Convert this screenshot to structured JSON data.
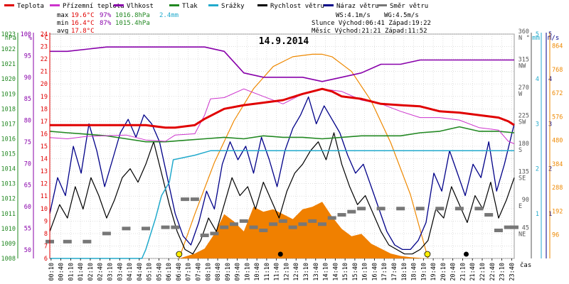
{
  "chart_data": {
    "type": "line",
    "title": "14.9.2014",
    "legend": [
      {
        "label": "Teplota",
        "color": "#e00000"
      },
      {
        "label": "Přízemní teplota",
        "color": "#cc33cc"
      },
      {
        "label": "Vlhkost",
        "color": "#8800aa"
      },
      {
        "label": "Tlak",
        "color": "#228822"
      },
      {
        "label": "Srážky",
        "color": "#22aacc"
      },
      {
        "label": "Rychlost větru",
        "color": "#000000"
      },
      {
        "label": "Náraz větru",
        "color": "#000088"
      },
      {
        "label": "Směr větru",
        "color": "#777777"
      }
    ],
    "stats": {
      "max_label": "max",
      "max_temp": "19.6°C",
      "max_hum": "97%",
      "max_press": "1016.8hPa",
      "max_rain": "2.4mm",
      "min_label": "min",
      "min_temp": "16.4°C",
      "min_hum": "87%",
      "min_press": "1015.4hPa",
      "avg_label": "avg",
      "avg_temp": "17.8°C",
      "ws": "WS:4.1m/s",
      "wg": "WG:4.5m/s",
      "sun": "Slunce Východ:06:41  Západ:19:22",
      "moon": "Měsíc  Východ:21:21  Západ:11:52"
    },
    "axes": {
      "pressure": {
        "unit": "hPa",
        "ticks": [
          "1023",
          "1022",
          "1021",
          "1020",
          "1019",
          "1018",
          "1017",
          "1016",
          "1015",
          "1014",
          "1013",
          "1012",
          "1011",
          "1010",
          "1009",
          "1008"
        ],
        "range": [
          1008,
          1023
        ],
        "color": "#228822"
      },
      "humidity": {
        "unit": "%",
        "ticks": [
          "100",
          "95",
          "90",
          "85",
          "80",
          "75",
          "70",
          "65",
          "60",
          "55",
          "50"
        ],
        "range": [
          48,
          100
        ],
        "color": "#8800aa"
      },
      "temperature": {
        "unit": "°C",
        "ticks": [
          "24",
          "23",
          "22",
          "21",
          "20",
          "19",
          "18",
          "17",
          "16",
          "15",
          "14",
          "13",
          "12",
          "11",
          "10",
          "9",
          "8",
          "7",
          "6"
        ],
        "range": [
          6,
          24
        ],
        "color": "#e00000"
      },
      "direction": {
        "unit": "°",
        "ticks": [
          {
            "deg": "360",
            "dir": "N"
          },
          {
            "deg": "315",
            "dir": "NW"
          },
          {
            "deg": "270",
            "dir": "W"
          },
          {
            "deg": "225",
            "dir": "SW"
          },
          {
            "deg": "180",
            "dir": "S"
          },
          {
            "deg": "135",
            "dir": "SE"
          },
          {
            "deg": "90",
            "dir": "E"
          },
          {
            "deg": "45",
            "dir": "NE"
          }
        ],
        "range": [
          0,
          360
        ],
        "color": "#555555"
      },
      "rain": {
        "unit": "mm",
        "ticks": [
          "5",
          "4",
          "3",
          "2",
          "1"
        ],
        "range": [
          0,
          5
        ],
        "color": "#22aacc"
      },
      "wind": {
        "unit": "m/s",
        "ticks": [
          "5",
          "4",
          "3",
          "2",
          "1"
        ],
        "range": [
          0,
          5
        ],
        "color": "#000088"
      },
      "solar": {
        "ticks": [
          "864",
          "768",
          "672",
          "576",
          "480",
          "384",
          "288",
          "192",
          "96"
        ],
        "range": [
          0,
          912
        ],
        "color": "#ee8800"
      },
      "time": {
        "label": "čas",
        "ticks": [
          "00:10",
          "00:40",
          "01:10",
          "01:40",
          "02:10",
          "02:40",
          "03:10",
          "03:40",
          "04:10",
          "04:40",
          "05:10",
          "05:40",
          "06:10",
          "06:40",
          "07:10",
          "07:40",
          "08:10",
          "08:40",
          "09:10",
          "09:40",
          "10:10",
          "10:40",
          "11:10",
          "11:40",
          "12:10",
          "12:40",
          "13:10",
          "13:40",
          "14:10",
          "14:40",
          "15:10",
          "15:40",
          "16:10",
          "16:40",
          "17:10",
          "17:40",
          "18:10",
          "18:40",
          "19:10",
          "19:40",
          "20:10",
          "20:40",
          "21:10",
          "21:40",
          "22:10",
          "22:40",
          "23:10",
          "23:40"
        ],
        "range_hours": [
          0.1,
          23.8
        ]
      }
    },
    "series": {
      "temperature": {
        "name": "Teplota",
        "x": [
          0.1,
          2,
          4,
          5,
          6,
          6.5,
          7.5,
          8,
          9,
          10,
          11,
          12,
          13,
          13.5,
          14,
          14.5,
          15,
          16,
          17,
          18,
          19,
          20,
          21,
          22,
          23,
          23.5,
          23.8
        ],
        "y": [
          16.7,
          16.7,
          16.7,
          16.7,
          16.5,
          16.5,
          16.7,
          17.2,
          18.0,
          18.3,
          18.5,
          18.7,
          19.2,
          19.4,
          19.6,
          19.4,
          19.0,
          18.8,
          18.4,
          18.3,
          18.2,
          17.8,
          17.7,
          17.5,
          17.3,
          17.0,
          16.7
        ]
      },
      "apparent_temperature": {
        "name": "Přízemní teplota",
        "x": [
          0.1,
          1,
          2,
          4,
          5,
          6,
          6.5,
          7.5,
          8,
          8.3,
          9,
          10,
          11,
          12,
          13,
          14,
          15,
          16,
          17,
          18,
          19,
          20,
          21,
          22,
          23,
          23.5,
          23.8
        ],
        "y": [
          15.7,
          15.6,
          15.8,
          15.9,
          15.5,
          15.4,
          15.9,
          16.0,
          17.5,
          18.8,
          18.9,
          19.6,
          19.0,
          18.4,
          19.2,
          19.6,
          19.4,
          18.7,
          18.4,
          17.8,
          17.3,
          17.3,
          17.1,
          16.5,
          16.3,
          15.4,
          15.2
        ]
      },
      "humidity": {
        "name": "Vlhkost",
        "x": [
          0.1,
          1,
          3,
          4,
          5,
          6,
          8,
          9,
          10,
          11,
          12,
          13,
          14,
          15,
          16,
          17,
          18,
          19,
          20,
          23.8
        ],
        "y": [
          96,
          96,
          97,
          97,
          97,
          97,
          97,
          96,
          91,
          90,
          90,
          90,
          89,
          90,
          91,
          93,
          93,
          94,
          94,
          94
        ]
      },
      "pressure": {
        "name": "Tlak",
        "x": [
          0.1,
          1,
          2,
          3,
          4,
          5,
          6,
          7,
          8,
          9,
          10,
          11,
          12,
          13,
          14,
          15,
          16,
          17,
          18,
          19,
          20,
          21,
          22,
          23,
          23.8
        ],
        "y": [
          1016.5,
          1016.4,
          1016.3,
          1016.2,
          1016.0,
          1015.8,
          1015.8,
          1015.9,
          1016.0,
          1016.1,
          1016.0,
          1016.2,
          1016.1,
          1016.1,
          1016.0,
          1016.1,
          1016.2,
          1016.2,
          1016.2,
          1016.4,
          1016.5,
          1016.8,
          1016.5,
          1016.5,
          1016.4
        ]
      },
      "rain": {
        "name": "Srážky",
        "x": [
          0.1,
          4.8,
          5.0,
          5.5,
          5.8,
          6.2,
          6.4,
          7.5,
          8.3,
          8.4,
          23.8
        ],
        "y": [
          0,
          0,
          0.2,
          0.9,
          1.4,
          1.7,
          2.2,
          2.3,
          2.4,
          2.4,
          2.4
        ]
      },
      "wind_speed": {
        "name": "Rychlost větru",
        "x": [
          0.1,
          0.6,
          1.0,
          1.4,
          1.8,
          2.2,
          2.6,
          3.0,
          3.4,
          3.8,
          4.2,
          4.6,
          5.0,
          5.4,
          5.8,
          6.2,
          6.6,
          7.0,
          7.4,
          7.8,
          8.2,
          8.6,
          9.0,
          9.4,
          9.8,
          10.2,
          10.6,
          11.0,
          11.4,
          11.8,
          12.2,
          12.6,
          13.0,
          13.4,
          13.8,
          14.2,
          14.6,
          15.0,
          15.4,
          15.8,
          16.2,
          16.6,
          17.0,
          17.4,
          17.8,
          18.2,
          18.6,
          19.0,
          19.4,
          19.8,
          20.2,
          20.6,
          21.0,
          21.4,
          21.8,
          22.2,
          22.6,
          23.0,
          23.4,
          23.8
        ],
        "y": [
          0.6,
          1.2,
          0.9,
          1.6,
          1.1,
          1.8,
          1.4,
          0.9,
          1.3,
          1.8,
          2.0,
          1.7,
          2.1,
          2.6,
          1.9,
          1.2,
          0.6,
          0.2,
          0.1,
          0.4,
          0.9,
          0.6,
          1.2,
          1.8,
          1.4,
          1.6,
          1.1,
          1.7,
          1.3,
          0.9,
          1.5,
          1.9,
          2.1,
          2.4,
          2.6,
          2.2,
          2.8,
          2.1,
          1.6,
          1.2,
          1.4,
          1.0,
          0.6,
          0.3,
          0.2,
          0.1,
          0.1,
          0.2,
          0.4,
          1.1,
          0.9,
          1.6,
          1.2,
          0.8,
          1.4,
          1.1,
          1.7,
          0.9,
          1.3,
          1.8
        ]
      },
      "wind_gust": {
        "name": "Náraz větru",
        "x": [
          0.1,
          0.5,
          0.9,
          1.3,
          1.7,
          2.1,
          2.5,
          2.9,
          3.3,
          3.7,
          4.1,
          4.5,
          4.9,
          5.3,
          5.7,
          6.1,
          6.5,
          6.9,
          7.3,
          7.7,
          8.1,
          8.5,
          8.9,
          9.3,
          9.7,
          10.1,
          10.5,
          10.9,
          11.3,
          11.7,
          12.1,
          12.5,
          12.9,
          13.3,
          13.7,
          14.1,
          14.5,
          14.9,
          15.3,
          15.7,
          16.1,
          16.5,
          16.9,
          17.3,
          17.7,
          18.1,
          18.5,
          18.9,
          19.3,
          19.7,
          20.1,
          20.5,
          20.9,
          21.3,
          21.7,
          22.1,
          22.5,
          22.9,
          23.3,
          23.8
        ],
        "y": [
          1.0,
          1.8,
          1.4,
          2.5,
          1.9,
          3.0,
          2.4,
          1.6,
          2.2,
          2.8,
          3.1,
          2.7,
          3.2,
          3.0,
          2.6,
          1.8,
          1.0,
          0.5,
          0.3,
          0.8,
          1.5,
          1.1,
          2.1,
          2.6,
          2.2,
          2.5,
          1.9,
          2.7,
          2.2,
          1.6,
          2.4,
          2.9,
          3.2,
          3.6,
          3.0,
          3.4,
          3.1,
          2.8,
          2.3,
          1.9,
          2.1,
          1.6,
          1.1,
          0.6,
          0.3,
          0.2,
          0.2,
          0.4,
          0.8,
          1.9,
          1.5,
          2.4,
          1.9,
          1.4,
          2.1,
          1.8,
          2.6,
          1.5,
          2.1,
          3.0
        ]
      },
      "wind_direction": {
        "name": "Směr větru",
        "x": [
          0.1,
          1,
          2,
          3,
          4,
          5,
          6,
          6.5,
          7,
          7.5,
          8,
          8.5,
          9,
          9.5,
          10,
          10.5,
          11,
          11.5,
          12,
          12.5,
          13,
          13.5,
          14,
          14.5,
          15,
          15.5,
          16,
          17,
          18,
          19,
          20,
          21,
          22,
          22.5,
          23,
          23.5,
          23.8
        ],
        "y": [
          27,
          27,
          27,
          40,
          48,
          48,
          50,
          50,
          95,
          95,
          37,
          40,
          50,
          55,
          60,
          50,
          45,
          55,
          60,
          50,
          55,
          60,
          55,
          65,
          70,
          75,
          80,
          80,
          80,
          80,
          80,
          80,
          80,
          70,
          45,
          50,
          50
        ]
      },
      "solar": {
        "name": "Sluneční záření",
        "x": [
          6.7,
          7.5,
          8,
          8.5,
          9,
          9.5,
          10,
          10.5,
          11,
          11.5,
          12,
          12.5,
          13,
          13.5,
          14,
          14.5,
          15,
          15.5,
          16,
          16.5,
          17,
          17.5,
          18,
          18.5,
          19,
          19.3
        ],
        "y": [
          0,
          20,
          40,
          100,
          180,
          150,
          110,
          210,
          190,
          200,
          180,
          160,
          200,
          210,
          230,
          170,
          120,
          90,
          100,
          60,
          40,
          20,
          10,
          5,
          2,
          0
        ]
      },
      "sun_elevation": {
        "name": "Slunce",
        "x": [
          6.7,
          7.5,
          8.5,
          9.5,
          10.5,
          11.5,
          12.5,
          13.5,
          14.0,
          14.5,
          15.5,
          16.5,
          17.5,
          18.5,
          19.4
        ],
        "y": [
          0,
          180,
          390,
          560,
          690,
          780,
          820,
          830,
          830,
          820,
          760,
          640,
          470,
          260,
          0
        ]
      }
    },
    "markers": {
      "sun": [
        6.7,
        19.37
      ],
      "moon": [
        11.87,
        21.35
      ]
    }
  }
}
